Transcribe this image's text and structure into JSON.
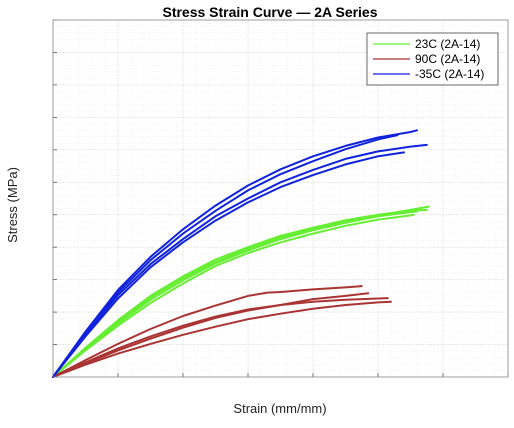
{
  "chart_data": {
    "type": "line",
    "title": "Stress Strain Curve — 2A Series",
    "xlabel": "Strain (mm/mm)",
    "ylabel": "Stress (MPa)",
    "xlim": [
      0,
      7
    ],
    "ylim": [
      0,
      11
    ],
    "x_ticks": [
      0,
      1,
      2,
      3,
      4,
      5,
      6,
      7
    ],
    "y_ticks": [
      0,
      1,
      2,
      3,
      4,
      5,
      6,
      7,
      8,
      9,
      10,
      11
    ],
    "x_tick_labels_shown": false,
    "y_tick_labels_shown": false,
    "grid": true,
    "minor_grid": true,
    "legend_position": "top-right",
    "legend": [
      {
        "label": "23C (2A-14)",
        "color": "#66ee33"
      },
      {
        "label": "90C (2A-14)",
        "color": "#aa3333"
      },
      {
        "label": "-35C (2A-14)",
        "color": "#1122dd"
      }
    ],
    "series": [
      {
        "group": "23C (2A-14)",
        "color": "#66ee33",
        "curves": [
          {
            "x": [
              0,
              0.5,
              1.0,
              1.5,
              2.0,
              2.5,
              3.0,
              3.5,
              4.0,
              4.5,
              5.0,
              5.5,
              5.75
            ],
            "y": [
              0,
              0.9,
              1.75,
              2.5,
              3.1,
              3.62,
              4.0,
              4.35,
              4.6,
              4.83,
              5.0,
              5.12,
              5.15
            ]
          },
          {
            "x": [
              0,
              0.5,
              1.0,
              1.5,
              2.0,
              2.5,
              3.0,
              3.5,
              4.0,
              4.5,
              5.0,
              5.5,
              5.6
            ],
            "y": [
              0,
              0.86,
              1.65,
              2.38,
              2.98,
              3.5,
              3.9,
              4.25,
              4.52,
              4.75,
              4.95,
              5.08,
              5.1
            ]
          },
          {
            "x": [
              0,
              0.5,
              1.0,
              1.5,
              2.0,
              2.5,
              3.0,
              3.5,
              4.0,
              4.5,
              5.0,
              5.5,
              5.55
            ],
            "y": [
              0,
              0.82,
              1.58,
              2.28,
              2.88,
              3.42,
              3.82,
              4.15,
              4.42,
              4.66,
              4.85,
              4.98,
              5.0
            ]
          },
          {
            "x": [
              0,
              0.5,
              1.0,
              1.5,
              2.0,
              2.5,
              3.0,
              3.5,
              4.0,
              4.5,
              5.0,
              5.5,
              5.78
            ],
            "y": [
              0,
              0.88,
              1.7,
              2.45,
              3.05,
              3.55,
              3.95,
              4.3,
              4.57,
              4.8,
              4.98,
              5.15,
              5.25
            ]
          }
        ]
      },
      {
        "group": "90C (2A-14)",
        "color": "#aa3333",
        "curves": [
          {
            "x": [
              0,
              0.5,
              1.0,
              1.5,
              2.0,
              2.5,
              3.0,
              3.5,
              4.0,
              4.5,
              5.0,
              5.2
            ],
            "y": [
              0,
              0.38,
              0.72,
              1.02,
              1.3,
              1.55,
              1.78,
              1.95,
              2.1,
              2.22,
              2.3,
              2.32
            ]
          },
          {
            "x": [
              0,
              0.5,
              1.0,
              1.5,
              2.0,
              2.5,
              3.0,
              3.5,
              4.0,
              4.5,
              4.85
            ],
            "y": [
              0,
              0.42,
              0.82,
              1.18,
              1.52,
              1.82,
              2.05,
              2.22,
              2.4,
              2.5,
              2.58
            ]
          },
          {
            "x": [
              0,
              0.5,
              1.0,
              1.5,
              2.0,
              2.5,
              3.0,
              3.3,
              3.5,
              4.0,
              4.5,
              4.75
            ],
            "y": [
              0,
              0.52,
              1.02,
              1.48,
              1.88,
              2.2,
              2.5,
              2.6,
              2.62,
              2.7,
              2.76,
              2.8
            ]
          },
          {
            "x": [
              0,
              0.5,
              1.0,
              1.5,
              2.0,
              2.5,
              3.0,
              3.5,
              4.0,
              4.5,
              5.0,
              5.15
            ],
            "y": [
              0,
              0.45,
              0.88,
              1.25,
              1.58,
              1.86,
              2.08,
              2.22,
              2.32,
              2.38,
              2.42,
              2.43
            ]
          }
        ]
      },
      {
        "group": "-35C (2A-14)",
        "color": "#1122dd",
        "curves": [
          {
            "x": [
              0,
              0.5,
              1.0,
              1.5,
              2.0,
              2.5,
              3.0,
              3.5,
              4.0,
              4.5,
              5.0,
              5.5,
              5.75
            ],
            "y": [
              0,
              1.32,
              2.52,
              3.48,
              4.25,
              4.95,
              5.5,
              6.0,
              6.38,
              6.72,
              6.95,
              7.1,
              7.15
            ]
          },
          {
            "x": [
              0,
              0.5,
              1.0,
              1.5,
              2.0,
              2.5,
              3.0,
              3.5,
              4.0,
              4.5,
              5.0,
              5.5,
              5.6
            ],
            "y": [
              0,
              1.4,
              2.68,
              3.7,
              4.55,
              5.28,
              5.9,
              6.4,
              6.8,
              7.12,
              7.38,
              7.55,
              7.6
            ]
          },
          {
            "x": [
              0,
              0.5,
              1.0,
              1.5,
              2.0,
              2.5,
              3.0,
              3.5,
              4.0,
              4.5,
              5.0,
              5.4
            ],
            "y": [
              0,
              1.25,
              2.42,
              3.38,
              4.15,
              4.82,
              5.38,
              5.85,
              6.22,
              6.55,
              6.8,
              6.92
            ]
          },
          {
            "x": [
              0,
              0.5,
              1.0,
              1.5,
              2.0,
              2.5,
              3.0,
              3.5,
              4.0,
              4.5,
              5.0,
              5.3
            ],
            "y": [
              0,
              1.37,
              2.6,
              3.6,
              4.42,
              5.12,
              5.75,
              6.25,
              6.65,
              7.02,
              7.32,
              7.45
            ]
          }
        ]
      }
    ]
  }
}
